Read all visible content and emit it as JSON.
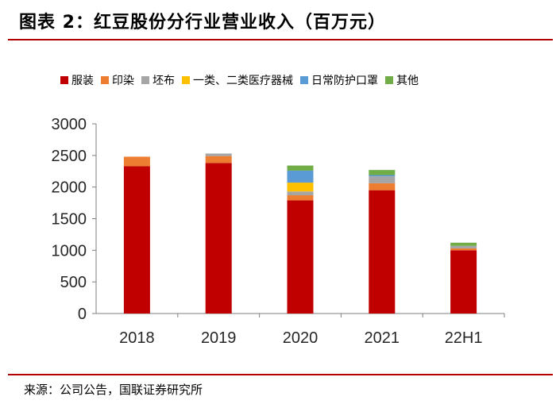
{
  "title": "图表 2：红豆股份分行业营业收入（百万元）",
  "source": "来源：公司公告，国联证券研究所",
  "chart_data": {
    "type": "bar",
    "stacked": true,
    "categories": [
      "2018",
      "2019",
      "2020",
      "2021",
      "22H1"
    ],
    "series": [
      {
        "name": "服装",
        "color": "#c00000",
        "values": [
          2330,
          2380,
          1790,
          1950,
          1000
        ]
      },
      {
        "name": "印染",
        "color": "#ed7d31",
        "values": [
          150,
          110,
          80,
          110,
          30
        ]
      },
      {
        "name": "坯布",
        "color": "#a5a5a5",
        "values": [
          0,
          40,
          60,
          110,
          40
        ]
      },
      {
        "name": "一类、二类医疗器械",
        "color": "#ffc000",
        "values": [
          0,
          0,
          140,
          0,
          0
        ]
      },
      {
        "name": "日常防护口罩",
        "color": "#5b9bd5",
        "values": [
          0,
          0,
          190,
          20,
          0
        ]
      },
      {
        "name": "其他",
        "color": "#70ad47",
        "values": [
          0,
          0,
          80,
          80,
          50
        ]
      }
    ],
    "yticks": [
      "0",
      "500",
      "1000",
      "1500",
      "2000",
      "2500",
      "3000"
    ],
    "ylim": [
      0,
      3000
    ],
    "legend_position": "top",
    "grid": false
  }
}
